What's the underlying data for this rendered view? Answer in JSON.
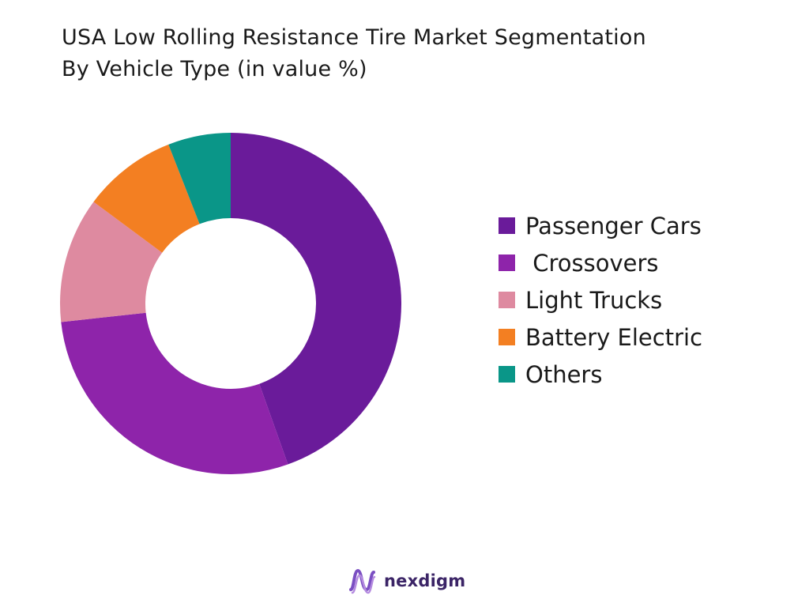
{
  "chart_data": {
    "type": "pie",
    "title": "USA Low Rolling Resistance Tire Market Segmentation",
    "subtitle": "By Vehicle Type (in value %)",
    "donut": true,
    "legend_position": "right",
    "categories": [
      "Passenger Cars",
      " Crossovers",
      "Light Trucks",
      "Battery Electric",
      "Others"
    ],
    "values": [
      45,
      29,
      12,
      9,
      6
    ],
    "colors": [
      "#6a1b9a",
      "#8e24aa",
      "#de8aa0",
      "#f37f22",
      "#0a9688"
    ]
  },
  "brand": {
    "name": "nexdigm"
  }
}
